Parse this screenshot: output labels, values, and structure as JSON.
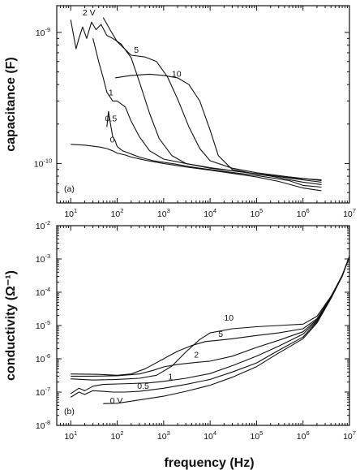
{
  "figure": {
    "xlabel": "frequency  (Hz)"
  },
  "chart_data": [
    {
      "type": "line",
      "panel_label": "(a)",
      "ylabel": "capacitance (F)",
      "xscale": "log",
      "yscale": "log",
      "xlim": [
        5,
        10000000
      ],
      "ylim": [
        5e-11,
        1.6e-09
      ],
      "x_ticks": [
        {
          "value": 10,
          "base": "10",
          "exp": "1"
        },
        {
          "value": 100,
          "base": "10",
          "exp": "2"
        },
        {
          "value": 1000,
          "base": "10",
          "exp": "3"
        },
        {
          "value": 10000,
          "base": "10",
          "exp": "4"
        },
        {
          "value": 100000,
          "base": "10",
          "exp": "5"
        },
        {
          "value": 1000000,
          "base": "10",
          "exp": "6"
        },
        {
          "value": 10000000,
          "base": "10",
          "exp": "7"
        }
      ],
      "y_ticks": [
        {
          "value": 1e-10,
          "base": "10",
          "exp": "-10"
        },
        {
          "value": 1e-09,
          "base": "10",
          "exp": "-9"
        }
      ],
      "series": [
        {
          "name": "0",
          "label_at": [
            70,
            1.45e-10
          ],
          "points": [
            [
              10,
              1.4e-10
            ],
            [
              20,
              1.38e-10
            ],
            [
              40,
              1.34e-10
            ],
            [
              60,
              1.3e-10
            ],
            [
              80,
              1.25e-10
            ],
            [
              100,
              1.2e-10
            ],
            [
              150,
              1.16e-10
            ],
            [
              200,
              1.12e-10
            ],
            [
              400,
              1.06e-10
            ],
            [
              1000,
              1e-10
            ],
            [
              3000,
              9.4e-11
            ],
            [
              10000,
              8.9e-11
            ],
            [
              30000,
              8.4e-11
            ],
            [
              100000,
              7.9e-11
            ],
            [
              300000,
              7.3e-11
            ],
            [
              1000000,
              6.5e-11
            ],
            [
              2500000,
              6.2e-11
            ]
          ]
        },
        {
          "name": "0.5",
          "label_at": [
            55,
            2.1e-10
          ],
          "points": [
            [
              60,
              1.9e-10
            ],
            [
              65,
              2.5e-10
            ],
            [
              70,
              2.1e-10
            ],
            [
              80,
              1.6e-10
            ],
            [
              90,
              1.5e-10
            ],
            [
              100,
              1.35e-10
            ],
            [
              130,
              1.25e-10
            ],
            [
              160,
              1.22e-10
            ],
            [
              200,
              1.18e-10
            ],
            [
              300,
              1.12e-10
            ],
            [
              600,
              1.05e-10
            ],
            [
              1500,
              1e-10
            ],
            [
              5000,
              9.3e-11
            ],
            [
              20000,
              8.7e-11
            ],
            [
              100000,
              8.1e-11
            ],
            [
              500000,
              7.4e-11
            ],
            [
              1000000,
              6.8e-11
            ],
            [
              2500000,
              6.6e-11
            ]
          ]
        },
        {
          "name": "1",
          "label_at": [
            65,
            3.3e-10
          ],
          "points": [
            [
              30,
              9e-10
            ],
            [
              40,
              6e-10
            ],
            [
              50,
              4.5e-10
            ],
            [
              60,
              3.5e-10
            ],
            [
              80,
              3e-10
            ],
            [
              100,
              3e-10
            ],
            [
              150,
              2.7e-10
            ],
            [
              200,
              2.1e-10
            ],
            [
              300,
              1.6e-10
            ],
            [
              500,
              1.25e-10
            ],
            [
              1000,
              1.08e-10
            ],
            [
              3000,
              1e-10
            ],
            [
              10000,
              9.3e-11
            ],
            [
              50000,
              8.6e-11
            ],
            [
              200000,
              8e-11
            ],
            [
              1000000,
              7.2e-11
            ],
            [
              2500000,
              6.9e-11
            ]
          ]
        },
        {
          "name": "2 V",
          "label_at": [
            18,
            1.35e-09
          ],
          "points": [
            [
              10,
              1.25e-09
            ],
            [
              13,
              7.5e-10
            ],
            [
              15,
              9e-10
            ],
            [
              18,
              1.1e-09
            ],
            [
              22,
              9e-10
            ],
            [
              28,
              1.2e-09
            ],
            [
              35,
              1.05e-09
            ],
            [
              45,
              1.15e-09
            ],
            [
              60,
              9.5e-10
            ],
            [
              80,
              9e-10
            ],
            [
              120,
              8.2e-10
            ],
            [
              200,
              6.4e-10
            ],
            [
              300,
              4.2e-10
            ],
            [
              500,
              2.4e-10
            ],
            [
              800,
              1.55e-10
            ],
            [
              1500,
              1.15e-10
            ],
            [
              3000,
              1e-10
            ],
            [
              10000,
              9.2e-11
            ],
            [
              50000,
              8.6e-11
            ],
            [
              200000,
              8.1e-11
            ],
            [
              1000000,
              7.5e-11
            ],
            [
              2500000,
              7.2e-11
            ]
          ]
        },
        {
          "name": "5",
          "label_at": [
            230,
            7e-10
          ],
          "points": [
            [
              50,
              1.3e-09
            ],
            [
              70,
              1.05e-09
            ],
            [
              100,
              8.5e-10
            ],
            [
              200,
              6.7e-10
            ],
            [
              400,
              6.5e-10
            ],
            [
              700,
              6e-10
            ],
            [
              1200,
              4.6e-10
            ],
            [
              2000,
              3.1e-10
            ],
            [
              3500,
              1.9e-10
            ],
            [
              6000,
              1.3e-10
            ],
            [
              10000,
              1.05e-10
            ],
            [
              30000,
              9.2e-11
            ],
            [
              100000,
              8.5e-11
            ],
            [
              500000,
              7.9e-11
            ],
            [
              2500000,
              7.4e-11
            ]
          ]
        },
        {
          "name": "10",
          "label_at": [
            1500,
            4.6e-10
          ],
          "points": [
            [
              90,
              4.5e-10
            ],
            [
              200,
              4.7e-10
            ],
            [
              500,
              4.8e-10
            ],
            [
              1000,
              4.7e-10
            ],
            [
              2000,
              4.5e-10
            ],
            [
              3500,
              4e-10
            ],
            [
              6000,
              3e-10
            ],
            [
              10000,
              1.8e-10
            ],
            [
              15000,
              1.15e-10
            ],
            [
              30000,
              9e-11
            ],
            [
              100000,
              8.3e-11
            ],
            [
              500000,
              7.8e-11
            ],
            [
              2500000,
              7.5e-11
            ]
          ]
        }
      ]
    },
    {
      "type": "line",
      "panel_label": "(b)",
      "ylabel": "conductivity (Ω⁻¹)",
      "xscale": "log",
      "yscale": "log",
      "xlim": [
        5,
        10000000
      ],
      "ylim": [
        1e-08,
        0.01
      ],
      "x_ticks": [
        {
          "value": 10,
          "base": "10",
          "exp": "1"
        },
        {
          "value": 100,
          "base": "10",
          "exp": "2"
        },
        {
          "value": 1000,
          "base": "10",
          "exp": "3"
        },
        {
          "value": 10000,
          "base": "10",
          "exp": "4"
        },
        {
          "value": 100000,
          "base": "10",
          "exp": "5"
        },
        {
          "value": 1000000,
          "base": "10",
          "exp": "6"
        },
        {
          "value": 10000000,
          "base": "10",
          "exp": "7"
        }
      ],
      "y_ticks": [
        {
          "value": 1e-08,
          "base": "10",
          "exp": "-8"
        },
        {
          "value": 1e-07,
          "base": "10",
          "exp": "-7"
        },
        {
          "value": 1e-06,
          "base": "10",
          "exp": "-6"
        },
        {
          "value": 1e-05,
          "base": "10",
          "exp": "-5"
        },
        {
          "value": 0.0001,
          "base": "10",
          "exp": "-4"
        },
        {
          "value": 0.001,
          "base": "10",
          "exp": "-3"
        },
        {
          "value": 0.01,
          "base": "10",
          "exp": "-2"
        }
      ],
      "series": [
        {
          "name": "0 V",
          "label_at": [
            70,
            4.5e-08
          ],
          "points": [
            [
              50,
              4.5e-08
            ],
            [
              100,
              4.6e-08
            ],
            [
              150,
              5e-08
            ],
            [
              300,
              5.8e-08
            ],
            [
              1000,
              7.5e-08
            ],
            [
              3000,
              1.05e-07
            ],
            [
              10000,
              1.6e-07
            ],
            [
              30000,
              2.8e-07
            ],
            [
              100000,
              5.8e-07
            ],
            [
              300000,
              1.5e-06
            ],
            [
              1000000,
              4e-06
            ],
            [
              2000000,
              1.2e-05
            ],
            [
              4000000,
              6.5e-05
            ],
            [
              7000000,
              0.0003
            ],
            [
              10000000,
              0.0012
            ]
          ]
        },
        {
          "name": "0.5",
          "label_at": [
            270,
            1.25e-07
          ],
          "points": [
            [
              10,
              7e-08
            ],
            [
              15,
              1e-07
            ],
            [
              20,
              8.5e-08
            ],
            [
              30,
              1.1e-07
            ],
            [
              50,
              1.05e-07
            ],
            [
              80,
              1e-07
            ],
            [
              150,
              1e-07
            ],
            [
              300,
              1.05e-07
            ],
            [
              1000,
              1.3e-07
            ],
            [
              3000,
              1.7e-07
            ],
            [
              10000,
              2.4e-07
            ],
            [
              30000,
              4e-07
            ],
            [
              100000,
              7.5e-07
            ],
            [
              300000,
              1.8e-06
            ],
            [
              1000000,
              4.5e-06
            ],
            [
              2000000,
              1.3e-05
            ],
            [
              4000000,
              6.8e-05
            ],
            [
              7000000,
              0.00031
            ],
            [
              10000000,
              0.0012
            ]
          ]
        },
        {
          "name": "1",
          "label_at": [
            1250,
            2.4e-07
          ],
          "points": [
            [
              10,
              9e-08
            ],
            [
              15,
              1.3e-07
            ],
            [
              20,
              1.1e-07
            ],
            [
              30,
              1.5e-07
            ],
            [
              50,
              1.7e-07
            ],
            [
              100,
              1.75e-07
            ],
            [
              200,
              1.8e-07
            ],
            [
              500,
              1.9e-07
            ],
            [
              1000,
              2.1e-07
            ],
            [
              3000,
              2.6e-07
            ],
            [
              10000,
              3.6e-07
            ],
            [
              30000,
              6.2e-07
            ],
            [
              100000,
              1.2e-06
            ],
            [
              300000,
              2.4e-06
            ],
            [
              1000000,
              5.5e-06
            ],
            [
              2000000,
              1.4e-05
            ],
            [
              4000000,
              7e-05
            ],
            [
              7000000,
              0.00032
            ],
            [
              10000000,
              0.0012
            ]
          ]
        },
        {
          "name": "2",
          "label_at": [
            4500,
            1.1e-06
          ],
          "points": [
            [
              10,
              3e-07
            ],
            [
              30,
              3e-07
            ],
            [
              100,
              3.1e-07
            ],
            [
              300,
              3.5e-07
            ],
            [
              600,
              4.5e-07
            ],
            [
              1000,
              5.7e-07
            ],
            [
              2000,
              6.8e-07
            ],
            [
              5000,
              7.8e-07
            ],
            [
              10000,
              8.5e-07
            ],
            [
              30000,
              1.2e-06
            ],
            [
              100000,
              2.2e-06
            ],
            [
              300000,
              3.6e-06
            ],
            [
              1000000,
              6.5e-06
            ],
            [
              2000000,
              1.5e-05
            ],
            [
              4000000,
              7.2e-05
            ],
            [
              7000000,
              0.00032
            ],
            [
              10000000,
              0.0012
            ]
          ]
        },
        {
          "name": "5",
          "label_at": [
            15000,
            4.5e-06
          ],
          "points": [
            [
              10,
              3.5e-07
            ],
            [
              40,
              3.4e-07
            ],
            [
              100,
              3.2e-07
            ],
            [
              200,
              3.5e-07
            ],
            [
              400,
              5e-07
            ],
            [
              1000,
              1e-06
            ],
            [
              2000,
              1.7e-06
            ],
            [
              4000,
              2.5e-06
            ],
            [
              8000,
              3.3e-06
            ],
            [
              15000,
              3.6e-06
            ],
            [
              30000,
              4e-06
            ],
            [
              100000,
              5e-06
            ],
            [
              300000,
              6e-06
            ],
            [
              1000000,
              8e-06
            ],
            [
              2000000,
              1.6e-05
            ],
            [
              4000000,
              7.3e-05
            ],
            [
              7000000,
              0.00032
            ],
            [
              10000000,
              0.0012
            ]
          ]
        },
        {
          "name": "10",
          "label_at": [
            20000,
            1.4e-05
          ],
          "points": [
            [
              10,
              2.5e-07
            ],
            [
              30,
              2.3e-07
            ],
            [
              100,
              2.4e-07
            ],
            [
              300,
              2.6e-07
            ],
            [
              700,
              3.2e-07
            ],
            [
              1500,
              6e-07
            ],
            [
              3000,
              1.6e-06
            ],
            [
              6000,
              3.8e-06
            ],
            [
              10000,
              6e-06
            ],
            [
              30000,
              8e-06
            ],
            [
              100000,
              9.2e-06
            ],
            [
              300000,
              1e-05
            ],
            [
              1000000,
              1.1e-05
            ],
            [
              2000000,
              1.9e-05
            ],
            [
              4000000,
              7.5e-05
            ],
            [
              7000000,
              0.00032
            ],
            [
              10000000,
              0.0012
            ]
          ]
        }
      ]
    }
  ]
}
